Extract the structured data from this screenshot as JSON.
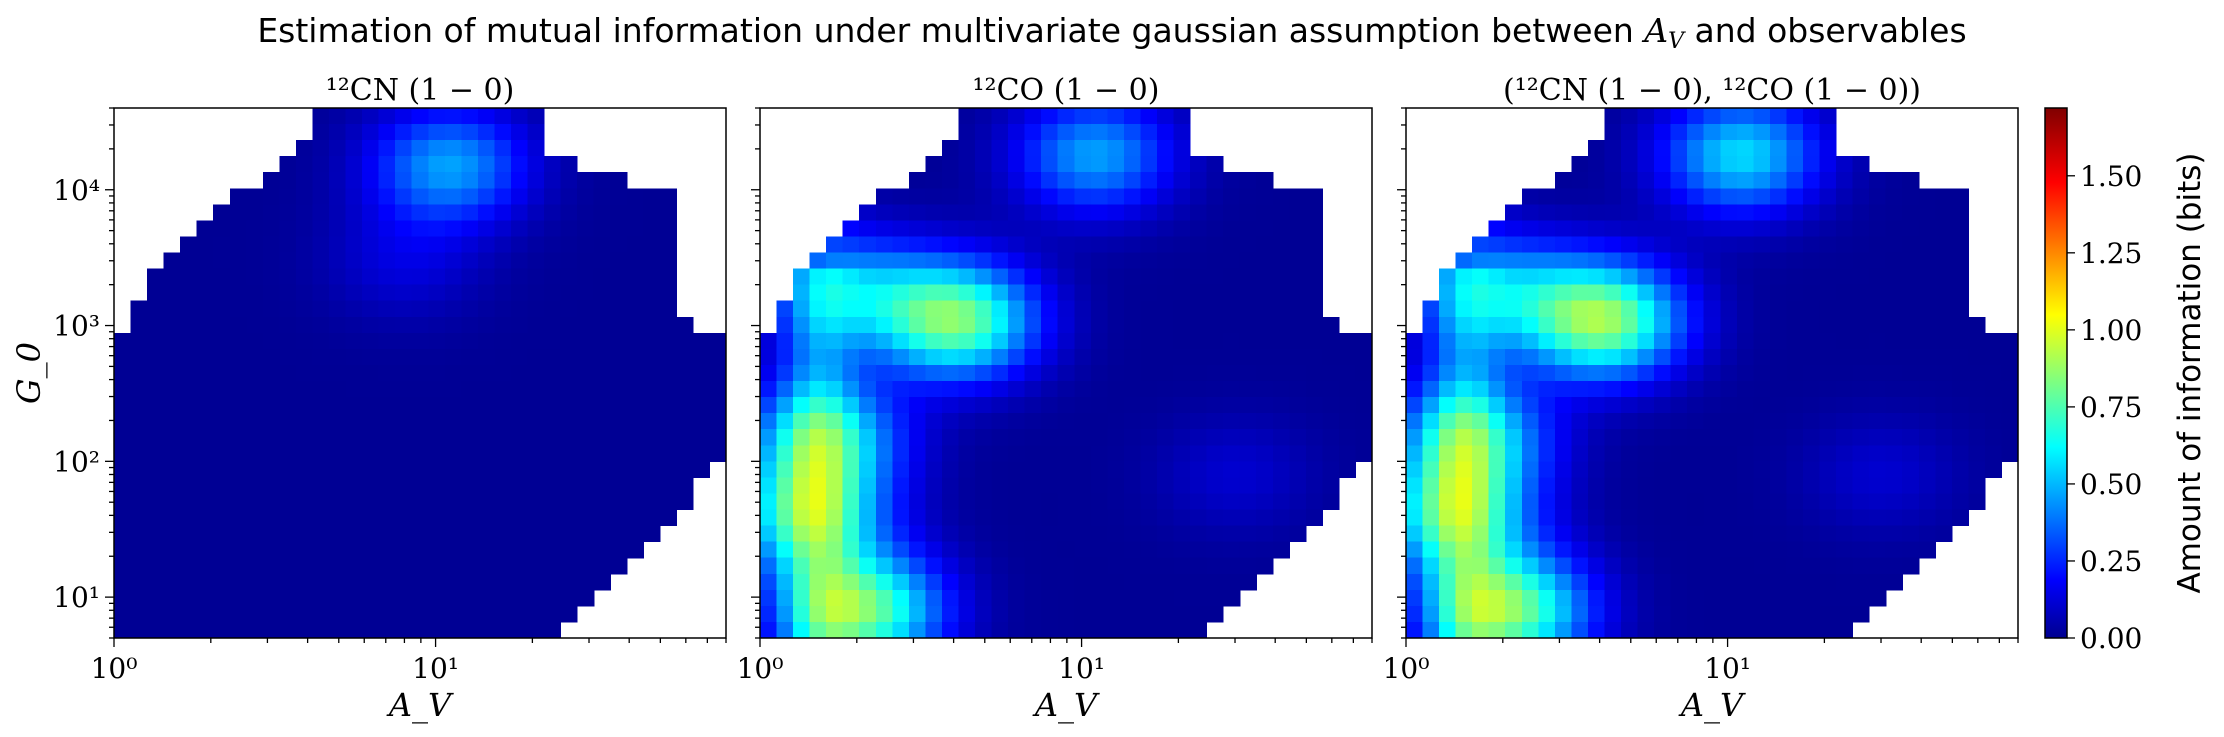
{
  "figure": {
    "title_prefix": "Estimation of mutual information under multivariate gaussian assumption between",
    "title_var_main": "A",
    "title_var_sub": "V",
    "title_suffix": "and observables"
  },
  "chart_data": [
    {
      "type": "heatmap",
      "title": "¹²CN (1 − 0)",
      "xlabel": "A_V",
      "ylabel": "G_0",
      "x_scale": "log",
      "y_scale": "log",
      "xlim": [
        1,
        80
      ],
      "ylim": [
        5,
        40000
      ],
      "x_ticks": [
        {
          "value": 1,
          "label": "10⁰"
        },
        {
          "value": 10,
          "label": "10¹"
        }
      ],
      "y_ticks": [
        {
          "value": 10,
          "label": "10¹"
        },
        {
          "value": 100,
          "label": "10²"
        },
        {
          "value": 1000,
          "label": "10³"
        },
        {
          "value": 10000,
          "label": "10⁴"
        }
      ],
      "hotspots": [
        {
          "av": 11,
          "g0": 15000,
          "bits": 0.45
        },
        {
          "av": 8,
          "g0": 3000,
          "bits": 0.12
        }
      ]
    },
    {
      "type": "heatmap",
      "title": "¹²CO (1 − 0)",
      "xlabel": "A_V",
      "x_scale": "log",
      "y_scale": "log",
      "xlim": [
        1,
        80
      ],
      "ylim": [
        5,
        40000
      ],
      "x_ticks": [
        {
          "value": 1,
          "label": "10⁰"
        },
        {
          "value": 10,
          "label": "10¹"
        }
      ],
      "hotspots": [
        {
          "av": 2.1,
          "g0": 8,
          "bits": 0.78
        },
        {
          "av": 4.1,
          "g0": 1100,
          "bits": 0.8
        },
        {
          "av": 1.4,
          "g0": 40,
          "bits": 0.6
        },
        {
          "av": 1.6,
          "g0": 150,
          "bits": 0.55
        },
        {
          "av": 2.0,
          "g0": 1800,
          "bits": 0.4
        },
        {
          "av": 11,
          "g0": 18000,
          "bits": 0.45
        },
        {
          "av": 30,
          "g0": 80,
          "bits": 0.1
        }
      ]
    },
    {
      "type": "heatmap",
      "title": "(¹²CN (1 − 0), ¹²CO (1 − 0))",
      "xlabel": "A_V",
      "x_scale": "log",
      "y_scale": "log",
      "xlim": [
        1,
        80
      ],
      "ylim": [
        5,
        40000
      ],
      "x_ticks": [
        {
          "value": 1,
          "label": "10⁰"
        },
        {
          "value": 10,
          "label": "10¹"
        }
      ],
      "hotspots": [
        {
          "av": 2.1,
          "g0": 8,
          "bits": 0.8
        },
        {
          "av": 4.1,
          "g0": 1100,
          "bits": 0.85
        },
        {
          "av": 1.4,
          "g0": 40,
          "bits": 0.6
        },
        {
          "av": 1.6,
          "g0": 150,
          "bits": 0.55
        },
        {
          "av": 2.0,
          "g0": 1800,
          "bits": 0.4
        },
        {
          "av": 11,
          "g0": 18000,
          "bits": 0.55
        },
        {
          "av": 30,
          "g0": 80,
          "bits": 0.1
        }
      ]
    }
  ],
  "colorbar": {
    "label": "Amount of information (bits)",
    "colormap": "jet",
    "range": [
      0,
      1.72
    ],
    "ticks": [
      "0.00",
      "0.25",
      "0.50",
      "0.75",
      "1.00",
      "1.25",
      "1.50"
    ]
  }
}
